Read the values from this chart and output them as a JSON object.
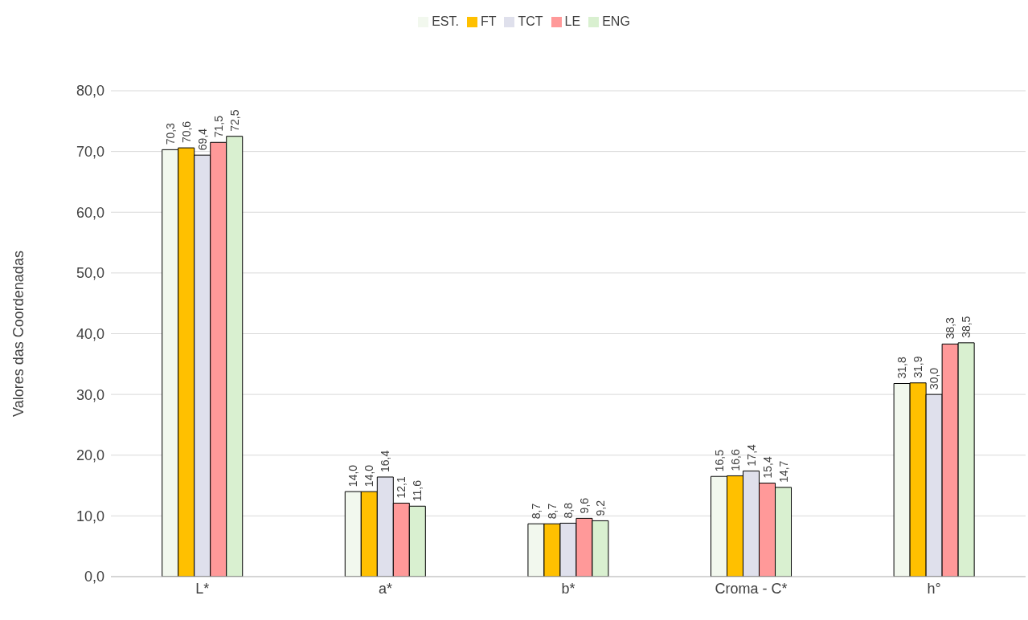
{
  "chart_data": {
    "type": "bar",
    "ylabel": "Valores das Coordenadas",
    "categories": [
      "L*",
      "a*",
      "b*",
      "Croma - C*",
      "h°"
    ],
    "series": [
      {
        "name": "EST.",
        "color": "#f2f8ee",
        "values": [
          70.3,
          14.0,
          8.7,
          16.5,
          31.8
        ],
        "value_labels": [
          "70,3",
          "14,0",
          "8,7",
          "16,5",
          "31,8"
        ]
      },
      {
        "name": "FT",
        "color": "#ffc000",
        "values": [
          70.6,
          14.0,
          8.7,
          16.6,
          31.9
        ],
        "value_labels": [
          "70,6",
          "14,0",
          "8,7",
          "16,6",
          "31,9"
        ]
      },
      {
        "name": "TCT",
        "color": "#dfe0ec",
        "values": [
          69.4,
          16.4,
          8.8,
          17.4,
          30.0
        ],
        "value_labels": [
          "69,4",
          "16,4",
          "8,8",
          "17,4",
          "30,0"
        ]
      },
      {
        "name": "LE",
        "color": "#ff9999",
        "values": [
          71.5,
          12.1,
          9.6,
          15.4,
          38.3
        ],
        "value_labels": [
          "71,5",
          "12,1",
          "9,6",
          "15,4",
          "38,3"
        ]
      },
      {
        "name": "ENG",
        "color": "#d9f0d0",
        "values": [
          72.5,
          11.6,
          9.2,
          14.7,
          38.5
        ],
        "value_labels": [
          "72,5",
          "11,6",
          "9,2",
          "14,7",
          "38,5"
        ]
      }
    ],
    "ylim": [
      0,
      80
    ],
    "yticks": [
      {
        "value": 0,
        "label": "0,0"
      },
      {
        "value": 10,
        "label": "10,0"
      },
      {
        "value": 20,
        "label": "20,0"
      },
      {
        "value": 30,
        "label": "30,0"
      },
      {
        "value": 40,
        "label": "40,0"
      },
      {
        "value": 50,
        "label": "50,0"
      },
      {
        "value": 60,
        "label": "60,0"
      },
      {
        "value": 70,
        "label": "70,0"
      },
      {
        "value": 80,
        "label": "80,0"
      }
    ],
    "grid": "y",
    "legend": "top"
  }
}
